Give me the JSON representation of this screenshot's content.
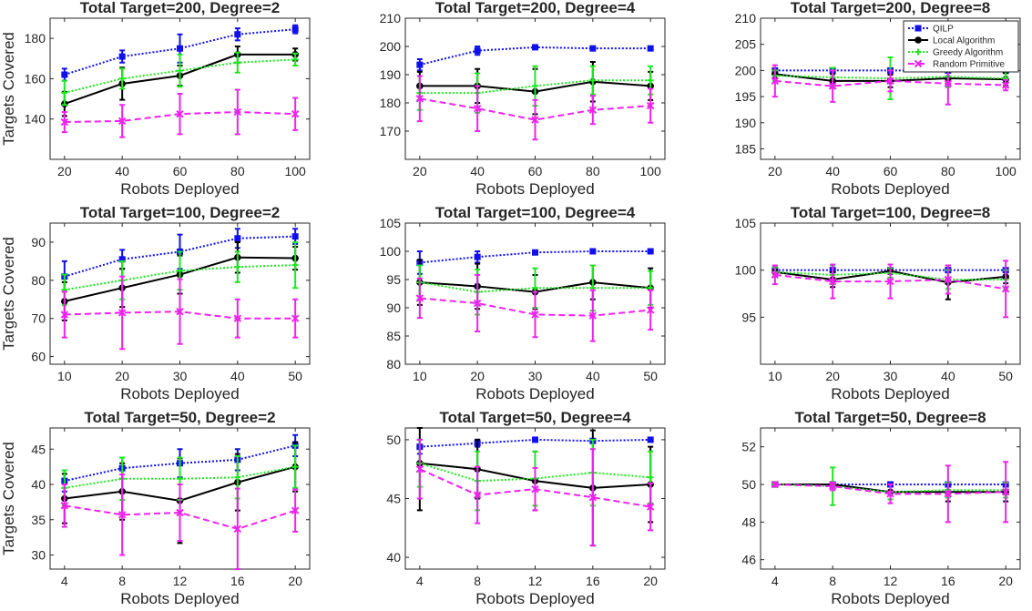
{
  "colors": {
    "qilp": "#1010ee",
    "local": "#000000",
    "greedy": "#1ee81e",
    "random": "#ee22ee",
    "axis": "#262626"
  },
  "legend": {
    "placement": "top-right of top-right panel",
    "entries": [
      "QILP",
      "Local Algorithm",
      "Greedy Algorithm",
      "Random Primitive"
    ]
  },
  "chart_data": [
    {
      "type": "line",
      "title": "Total Target=200, Degree=2",
      "xlabel": "Robots Deployed",
      "ylabel": "Targets Covered",
      "x": [
        20,
        40,
        60,
        80,
        100
      ],
      "xlim": [
        15,
        105
      ],
      "ylim": [
        120,
        190
      ],
      "yticks": [
        140,
        160,
        180
      ],
      "series": [
        {
          "name": "QILP",
          "values": [
            162,
            171,
            175,
            182,
            184.5
          ],
          "err": [
            3,
            3,
            7,
            3,
            2
          ]
        },
        {
          "name": "Local Algorithm",
          "values": [
            147.5,
            157.5,
            161.5,
            172,
            172
          ],
          "err": [
            6,
            8,
            5,
            4,
            3
          ]
        },
        {
          "name": "Greedy Algorithm",
          "values": [
            153,
            160,
            164,
            168,
            169.5
          ],
          "err": [
            6,
            5,
            8,
            5,
            3
          ]
        },
        {
          "name": "Random Primitive",
          "values": [
            138.5,
            139,
            142.5,
            143.5,
            142.5
          ],
          "err": [
            5,
            8,
            10,
            11,
            8
          ]
        }
      ]
    },
    {
      "type": "line",
      "title": "Total Target=200, Degree=4",
      "xlabel": "Robots Deployed",
      "ylabel": "",
      "x": [
        20,
        40,
        60,
        80,
        100
      ],
      "xlim": [
        15,
        105
      ],
      "ylim": [
        160,
        210
      ],
      "yticks": [
        170,
        180,
        190,
        200,
        210
      ],
      "series": [
        {
          "name": "QILP",
          "values": [
            193.5,
            198.5,
            199.7,
            199.3,
            199.3
          ],
          "err": [
            2,
            1.5,
            0.5,
            0.7,
            0.7
          ]
        },
        {
          "name": "Local Algorithm",
          "values": [
            186,
            186,
            184,
            187.5,
            186
          ],
          "err": [
            5,
            6,
            8,
            7,
            5
          ]
        },
        {
          "name": "Greedy Algorithm",
          "values": [
            183.5,
            183.5,
            186,
            188,
            188
          ],
          "err": [
            6,
            7,
            7,
            5,
            5
          ]
        },
        {
          "name": "Random Primitive",
          "values": [
            181.5,
            178,
            174,
            177.5,
            179
          ],
          "err": [
            8,
            8,
            7,
            5,
            6
          ]
        }
      ]
    },
    {
      "type": "line",
      "title": "Total Target=200, Degree=8",
      "xlabel": "Robots Deployed",
      "ylabel": "",
      "x": [
        20,
        40,
        60,
        80,
        100
      ],
      "xlim": [
        15,
        105
      ],
      "ylim": [
        183,
        210
      ],
      "yticks": [
        185,
        190,
        195,
        200,
        205,
        210
      ],
      "series": [
        {
          "name": "QILP",
          "values": [
            200,
            200,
            200,
            200,
            200
          ],
          "err": [
            0.3,
            0.3,
            0.3,
            0.3,
            0.3
          ]
        },
        {
          "name": "Local Algorithm",
          "values": [
            199.3,
            198,
            198,
            198.5,
            198.3
          ],
          "err": [
            0.8,
            1.3,
            1.2,
            1.3,
            1.2
          ]
        },
        {
          "name": "Greedy Algorithm",
          "values": [
            199,
            198.7,
            198.5,
            198.8,
            198.5
          ],
          "err": [
            1,
            1.8,
            4,
            2,
            1.5
          ]
        },
        {
          "name": "Random Primitive",
          "values": [
            198,
            197,
            198,
            197.5,
            197.2
          ],
          "err": [
            3,
            3,
            2,
            4,
            1
          ]
        }
      ]
    },
    {
      "type": "line",
      "title": "Total Target=100, Degree=2",
      "xlabel": "Robots Deployed",
      "ylabel": "Targets Covered",
      "x": [
        10,
        20,
        30,
        40,
        50
      ],
      "xlim": [
        7.5,
        52.5
      ],
      "ylim": [
        58,
        95
      ],
      "yticks": [
        60,
        70,
        80,
        90
      ],
      "series": [
        {
          "name": "QILP",
          "values": [
            81,
            85.5,
            87.5,
            91,
            91.5
          ],
          "err": [
            4,
            2.5,
            4.5,
            2.5,
            2
          ]
        },
        {
          "name": "Local Algorithm",
          "values": [
            74.5,
            78,
            81.5,
            86,
            85.8
          ],
          "err": [
            5,
            5,
            5,
            4,
            3
          ]
        },
        {
          "name": "Greedy Algorithm",
          "values": [
            77.5,
            80,
            82.5,
            83.5,
            84
          ],
          "err": [
            4,
            5,
            5,
            4,
            6
          ]
        },
        {
          "name": "Random Primitive",
          "values": [
            71,
            71.5,
            71.8,
            70,
            70
          ],
          "err": [
            6,
            9.5,
            8.5,
            5,
            5
          ]
        }
      ]
    },
    {
      "type": "line",
      "title": "Total Target=100, Degree=4",
      "xlabel": "Robots Deployed",
      "ylabel": "",
      "x": [
        10,
        20,
        30,
        40,
        50
      ],
      "xlim": [
        7.5,
        52.5
      ],
      "ylim": [
        80,
        105
      ],
      "yticks": [
        80,
        85,
        90,
        95,
        100,
        105
      ],
      "series": [
        {
          "name": "QILP",
          "values": [
            98,
            99,
            99.8,
            100,
            100
          ],
          "err": [
            2,
            1,
            0.3,
            0.3,
            0.2
          ]
        },
        {
          "name": "Local Algorithm",
          "values": [
            94.5,
            93.8,
            92.8,
            94.5,
            93.5
          ],
          "err": [
            4,
            4,
            3,
            3,
            3.5
          ]
        },
        {
          "name": "Greedy Algorithm",
          "values": [
            94.5,
            92.8,
            93.5,
            93.5,
            93.5
          ],
          "err": [
            3,
            4,
            3.5,
            4,
            3
          ]
        },
        {
          "name": "Random Primitive",
          "values": [
            91.7,
            90.8,
            88.8,
            88.6,
            89.6
          ],
          "err": [
            3.5,
            5,
            4,
            4.5,
            3.5
          ]
        }
      ]
    },
    {
      "type": "line",
      "title": "Total Target=100, Degree=8",
      "xlabel": "Robots Deployed",
      "ylabel": "",
      "x": [
        10,
        20,
        30,
        40,
        50
      ],
      "xlim": [
        7.5,
        52.5
      ],
      "ylim": [
        90,
        105
      ],
      "yticks": [
        95,
        100,
        105
      ],
      "series": [
        {
          "name": "QILP",
          "values": [
            100,
            100,
            100,
            100,
            100
          ],
          "err": [
            0.2,
            0.2,
            0.2,
            0.2,
            0.2
          ]
        },
        {
          "name": "Local Algorithm",
          "values": [
            99.8,
            99,
            99.9,
            98.7,
            99.3
          ],
          "err": [
            0.5,
            0.8,
            0.3,
            1.8,
            0.7
          ]
        },
        {
          "name": "Greedy Algorithm",
          "values": [
            99.8,
            99.5,
            99.7,
            99,
            99
          ],
          "err": [
            0.5,
            1,
            0.5,
            1,
            1
          ]
        },
        {
          "name": "Random Primitive",
          "values": [
            99.5,
            98.8,
            98.8,
            99,
            98
          ],
          "err": [
            1,
            1.8,
            1.8,
            1.5,
            3
          ]
        }
      ]
    },
    {
      "type": "line",
      "title": "Total Target=50, Degree=2",
      "xlabel": "Robots Deployed",
      "ylabel": "Targets Covered",
      "x": [
        4,
        8,
        12,
        16,
        20
      ],
      "xlim": [
        3,
        21
      ],
      "ylim": [
        28,
        48
      ],
      "yticks": [
        30,
        35,
        40,
        45
      ],
      "series": [
        {
          "name": "QILP",
          "values": [
            40.5,
            42.3,
            43,
            43.5,
            45.5
          ],
          "err": [
            1.5,
            1.5,
            2,
            1.5,
            1.5
          ]
        },
        {
          "name": "Local Algorithm",
          "values": [
            38,
            39,
            37.7,
            40.3,
            42.5
          ],
          "err": [
            3.5,
            4,
            6,
            4,
            3.5
          ]
        },
        {
          "name": "Greedy Algorithm",
          "values": [
            39.5,
            40.8,
            40.8,
            41,
            42.5
          ],
          "err": [
            2.5,
            3,
            3,
            3,
            3
          ]
        },
        {
          "name": "Random Primitive",
          "values": [
            37,
            35.7,
            36,
            33.7,
            36.3
          ],
          "err": [
            3,
            5.7,
            4,
            5.7,
            3
          ]
        }
      ]
    },
    {
      "type": "line",
      "title": "Total Target=50, Degree=4",
      "xlabel": "Robots Deployed",
      "ylabel": "",
      "x": [
        4,
        8,
        12,
        16,
        20
      ],
      "xlim": [
        3,
        21
      ],
      "ylim": [
        39,
        51
      ],
      "yticks": [
        40,
        45,
        50
      ],
      "series": [
        {
          "name": "QILP",
          "values": [
            49.4,
            49.7,
            50,
            49.9,
            50
          ],
          "err": [
            0.6,
            0.3,
            0.1,
            0.1,
            0.1
          ]
        },
        {
          "name": "Local Algorithm",
          "values": [
            48,
            47.5,
            46.5,
            45.9,
            46.2
          ],
          "err": [
            4,
            2.5,
            2.5,
            4.9,
            3.2
          ]
        },
        {
          "name": "Greedy Algorithm",
          "values": [
            48,
            46.5,
            46.7,
            47.2,
            46.8
          ],
          "err": [
            2,
            2.5,
            2.3,
            2.8,
            2.2
          ]
        },
        {
          "name": "Random Primitive",
          "values": [
            47.5,
            45.3,
            45.8,
            45.1,
            44.3
          ],
          "err": [
            2.5,
            2.4,
            1.8,
            4.1,
            2
          ]
        }
      ]
    },
    {
      "type": "line",
      "title": "Total Target=50, Degree=8",
      "xlabel": "Robots Deployed",
      "ylabel": "",
      "x": [
        4,
        8,
        12,
        16,
        20
      ],
      "xlim": [
        3,
        21
      ],
      "ylim": [
        45.5,
        53
      ],
      "yticks": [
        46,
        48,
        50,
        52
      ],
      "series": [
        {
          "name": "QILP",
          "values": [
            50,
            50,
            50,
            50,
            50
          ],
          "err": [
            0.1,
            0.1,
            0.1,
            0.1,
            0.1
          ]
        },
        {
          "name": "Local Algorithm",
          "values": [
            50,
            50,
            49.6,
            49.6,
            49.6
          ],
          "err": [
            0.1,
            0.1,
            0.4,
            0.5,
            0.5
          ]
        },
        {
          "name": "Greedy Algorithm",
          "values": [
            50,
            49.9,
            49.6,
            49.7,
            49.7
          ],
          "err": [
            0.1,
            1,
            0.4,
            0.4,
            0.4
          ]
        },
        {
          "name": "Random Primitive",
          "values": [
            50,
            49.9,
            49.5,
            49.5,
            49.6
          ],
          "err": [
            0.1,
            0.2,
            0.5,
            1.5,
            1.6
          ]
        }
      ]
    }
  ]
}
